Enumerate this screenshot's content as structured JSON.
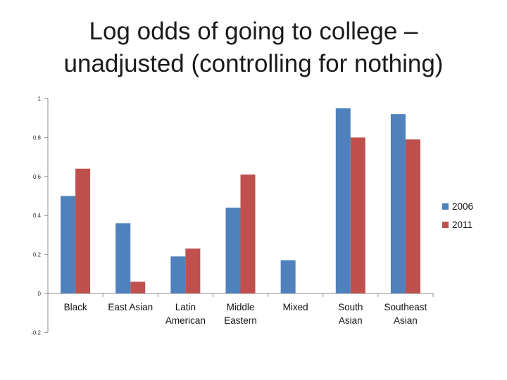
{
  "slide": {
    "title_line1": "Log odds of going to college –",
    "title_line2": "unadjusted (controlling for nothing)"
  },
  "chart_data": {
    "type": "bar",
    "title": "Log odds of going to college – unadjusted (controlling for nothing)",
    "categories": [
      [
        "Black"
      ],
      [
        "East Asian"
      ],
      [
        "Latin",
        "American"
      ],
      [
        "Middle",
        "Eastern"
      ],
      [
        "Mixed"
      ],
      [
        "South",
        "Asian"
      ],
      [
        "Southeast",
        "Asian"
      ]
    ],
    "series": [
      {
        "name": "2006",
        "color": "#4F81BD",
        "values": [
          0.5,
          0.36,
          0.19,
          0.44,
          0.17,
          0.95,
          0.92
        ]
      },
      {
        "name": "2011",
        "color": "#C0504D",
        "values": [
          0.64,
          0.06,
          0.23,
          0.61,
          null,
          0.8,
          0.79
        ]
      }
    ],
    "ylim": [
      -0.2,
      1
    ],
    "yticks": [
      "-0.2",
      "0",
      "0.2",
      "0.4",
      "0.6",
      "0.8",
      "1"
    ],
    "ytick_values": [
      -0.2,
      0,
      0.2,
      0.4,
      0.6,
      0.8,
      1
    ],
    "grid": false,
    "legend": "right"
  }
}
